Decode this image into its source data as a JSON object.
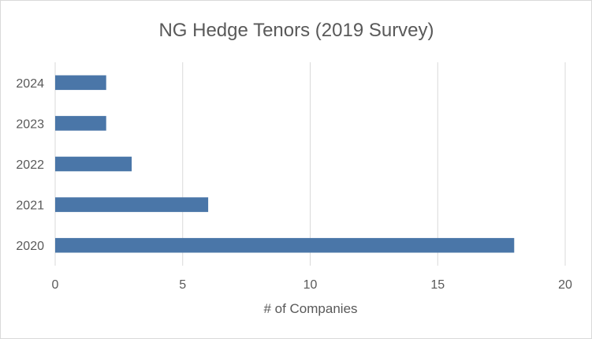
{
  "chart_data": {
    "type": "bar",
    "orientation": "horizontal",
    "title": "NG Hedge Tenors (2019 Survey)",
    "xlabel": "# of Companies",
    "ylabel": "",
    "categories": [
      "2020",
      "2021",
      "2022",
      "2023",
      "2024"
    ],
    "values": [
      18,
      6,
      3,
      2,
      2
    ],
    "xlim": [
      0,
      20
    ],
    "x_ticks": [
      "0",
      "5",
      "10",
      "15",
      "20"
    ],
    "grid": "vertical major gridlines",
    "legend": "none",
    "bar_color": "#4a76a8",
    "grid_color": "#d9d9d9"
  }
}
